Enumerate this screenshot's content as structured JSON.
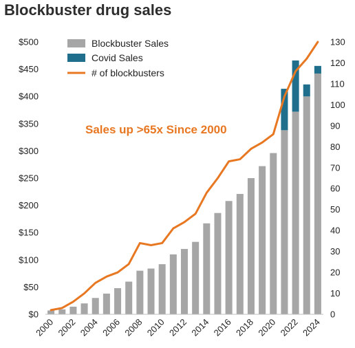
{
  "chart_data": {
    "type": "bar",
    "title": "Blockbuster drug sales",
    "xlabel": "",
    "ylabel": "",
    "y2label": "",
    "categories": [
      "2000",
      "2001",
      "2002",
      "2003",
      "2004",
      "2005",
      "2006",
      "2007",
      "2008",
      "2009",
      "2010",
      "2011",
      "2012",
      "2013",
      "2014",
      "2015",
      "2016",
      "2017",
      "2018",
      "2019",
      "2020",
      "2021",
      "2022",
      "2023",
      "2024"
    ],
    "x_tick_labels": [
      "2000",
      "2002",
      "2004",
      "2006",
      "2008",
      "2010",
      "2012",
      "2014",
      "2016",
      "2018",
      "2020",
      "2022",
      "2024"
    ],
    "ylim": [
      0,
      500
    ],
    "y_ticks": [
      0,
      50,
      100,
      150,
      200,
      250,
      300,
      350,
      400,
      450,
      500
    ],
    "y_tick_labels": [
      "$0",
      "$50",
      "$100",
      "$150",
      "$200",
      "$250",
      "$300",
      "$350",
      "$400",
      "$450",
      "$500"
    ],
    "y2lim": [
      0,
      130
    ],
    "y2_ticks": [
      0,
      10,
      20,
      30,
      40,
      50,
      60,
      70,
      80,
      90,
      100,
      110,
      120,
      130
    ],
    "stacked": true,
    "series": [
      {
        "name": "Blockbuster Sales",
        "type": "bar",
        "axis": "left",
        "color": "#a6a6a6",
        "values": [
          7,
          9,
          14,
          20,
          30,
          38,
          48,
          60,
          80,
          84,
          92,
          110,
          120,
          133,
          167,
          186,
          208,
          221,
          250,
          272,
          296,
          338,
          372,
          400,
          442
        ]
      },
      {
        "name": "Covid Sales",
        "type": "bar",
        "axis": "left",
        "color": "#1f6e8c",
        "values": [
          0,
          0,
          0,
          0,
          0,
          0,
          0,
          0,
          0,
          0,
          0,
          0,
          0,
          0,
          0,
          0,
          0,
          0,
          0,
          0,
          0,
          76,
          94,
          22,
          14
        ]
      },
      {
        "name": "# of blockbusters",
        "type": "line",
        "axis": "right",
        "color": "#e87722",
        "values": [
          2,
          3,
          6,
          10,
          15,
          18,
          20,
          24,
          34,
          33,
          34,
          41,
          44,
          48,
          58,
          65,
          73,
          74,
          79,
          82,
          86,
          104,
          116,
          122,
          130
        ]
      }
    ],
    "legend_position": "top-left",
    "annotation": {
      "text": "Sales up >65x Since 2000",
      "color": "#e87722"
    },
    "grid": false
  }
}
